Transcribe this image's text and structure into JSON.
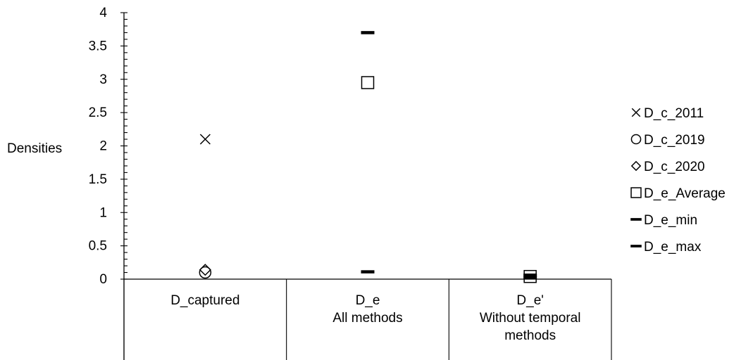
{
  "chart_data": {
    "type": "scatter",
    "ylabel": "Densities",
    "ylim": [
      0,
      4
    ],
    "y_major_ticks": [
      0,
      0.5,
      1,
      1.5,
      2,
      2.5,
      3,
      3.5,
      4
    ],
    "y_tick_labels": [
      "0",
      "0.5",
      "1",
      "1.5",
      "2",
      "2.5",
      "3",
      "3.5",
      "4"
    ],
    "categories": [
      {
        "lines": [
          "D_captured"
        ]
      },
      {
        "lines": [
          "D_e",
          "All methods"
        ]
      },
      {
        "lines": [
          "D_e'",
          "Without temporal",
          "methods"
        ]
      }
    ],
    "series": [
      {
        "name": "D_c_2011",
        "marker": "x",
        "values": [
          2.1,
          null,
          null
        ]
      },
      {
        "name": "D_c_2019",
        "marker": "circle",
        "values": [
          0.1,
          null,
          null
        ]
      },
      {
        "name": "D_c_2020",
        "marker": "diamond",
        "values": [
          0.14,
          null,
          null
        ]
      },
      {
        "name": "D_e_Average",
        "marker": "square",
        "values": [
          null,
          2.95,
          0.04
        ]
      },
      {
        "name": "D_e_min",
        "marker": "dash",
        "values": [
          null,
          0.11,
          0.02
        ]
      },
      {
        "name": "D_e_max",
        "marker": "dash",
        "values": [
          null,
          3.7,
          0.06
        ]
      }
    ],
    "legend_position": "right",
    "grid": false,
    "colors": {
      "marker": "#000000",
      "axis": "#000000"
    }
  }
}
